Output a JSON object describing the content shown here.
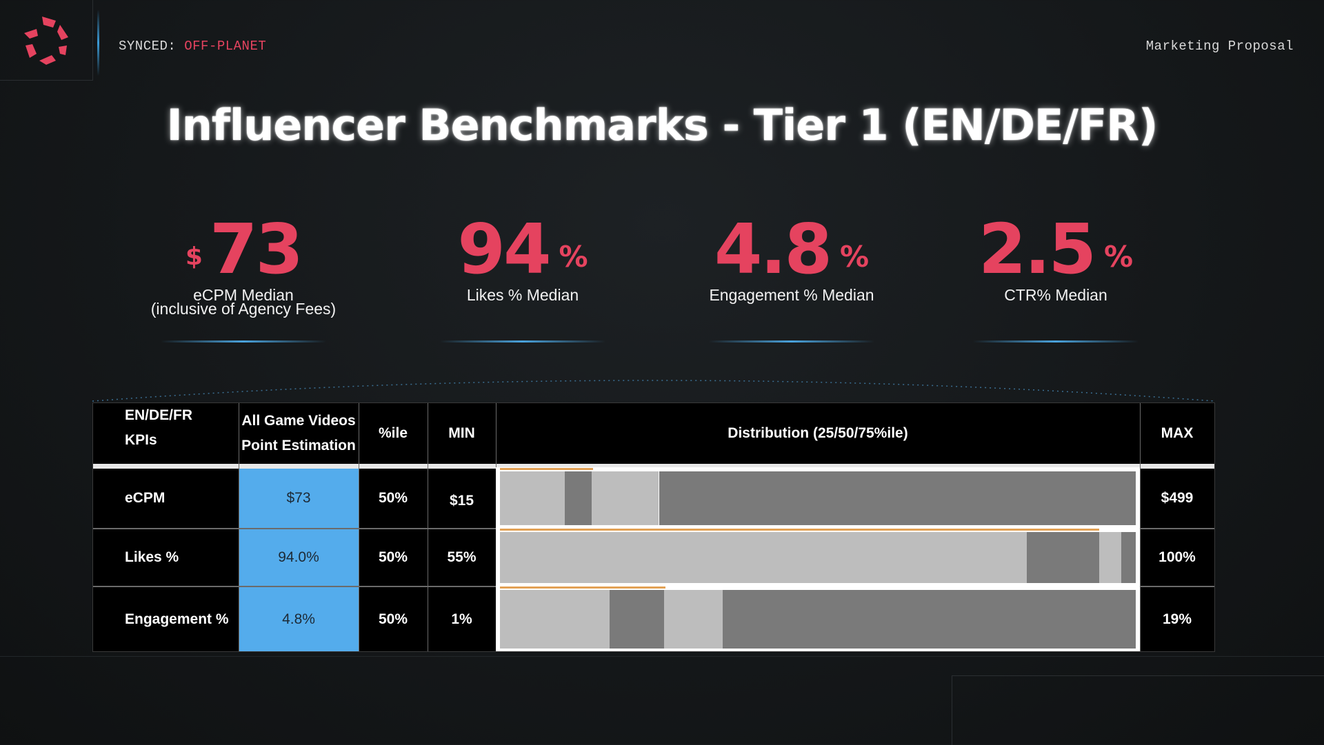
{
  "header": {
    "sync_label": "SYNCED:",
    "sync_status": "OFF-PLANET",
    "doc_label": "Marketing Proposal"
  },
  "title": "Influencer Benchmarks - Tier 1 (EN/DE/FR)",
  "colors": {
    "accent": "#e5435f",
    "highlight_blue": "#54acec",
    "glow_blue": "#4aa3dd",
    "bar_light": "#bdbdbd",
    "bar_dark": "#7a7a7a",
    "range_orange": "#e2a155"
  },
  "kpis": [
    {
      "prefix": "$",
      "value": "73",
      "suffix": "",
      "label_line1": "eCPM Median",
      "label_line2": "(inclusive of Agency Fees)"
    },
    {
      "prefix": "",
      "value": "94",
      "suffix": "%",
      "label_line1": "Likes % Median",
      "label_line2": ""
    },
    {
      "prefix": "",
      "value": "4.8",
      "suffix": "%",
      "label_line1": "Engagement % Median",
      "label_line2": ""
    },
    {
      "prefix": "",
      "value": "2.5",
      "suffix": "%",
      "label_line1": "CTR% Median",
      "label_line2": ""
    }
  ],
  "table": {
    "headers": {
      "kpi_line1": "EN/DE/FR",
      "kpi_line2": "KPIs",
      "est_line1": "All Game Videos",
      "est_line2": "Point Estimation",
      "pctile": "%ile",
      "min": "MIN",
      "distribution": "Distribution (25/50/75%ile)",
      "max": "MAX"
    },
    "rows": [
      {
        "kpi": "eCPM",
        "estimate": "$73",
        "pctile": "50%",
        "min": "$15",
        "max": "$499",
        "bars": [
          {
            "from": 0,
            "to": 0.102,
            "shade": "light"
          },
          {
            "from": 0.102,
            "to": 0.144,
            "shade": "dark"
          },
          {
            "from": 0.144,
            "to": 0.25,
            "shade": "light"
          },
          {
            "from": 0.25,
            "to": 1.0,
            "shade": "dark"
          }
        ],
        "orange_range": [
          0,
          0.146
        ]
      },
      {
        "kpi": "Likes %",
        "estimate": "94.0%",
        "pctile": "50%",
        "min": "55%",
        "max": "100%",
        "bars": [
          {
            "from": 0,
            "to": 0.829,
            "shade": "light"
          },
          {
            "from": 0.829,
            "to": 0.942,
            "shade": "dark"
          },
          {
            "from": 0.942,
            "to": 0.977,
            "shade": "light"
          },
          {
            "from": 0.977,
            "to": 1.0,
            "shade": "dark"
          }
        ],
        "orange_range": [
          0,
          0.942
        ]
      },
      {
        "kpi": "Engagement %",
        "estimate": "4.8%",
        "pctile": "50%",
        "min": "1%",
        "max": "19%",
        "bars": [
          {
            "from": 0,
            "to": 0.172,
            "shade": "light"
          },
          {
            "from": 0.172,
            "to": 0.258,
            "shade": "dark"
          },
          {
            "from": 0.258,
            "to": 0.35,
            "shade": "light"
          },
          {
            "from": 0.35,
            "to": 1.0,
            "shade": "dark"
          }
        ],
        "orange_range": [
          0,
          0.26
        ]
      }
    ]
  }
}
